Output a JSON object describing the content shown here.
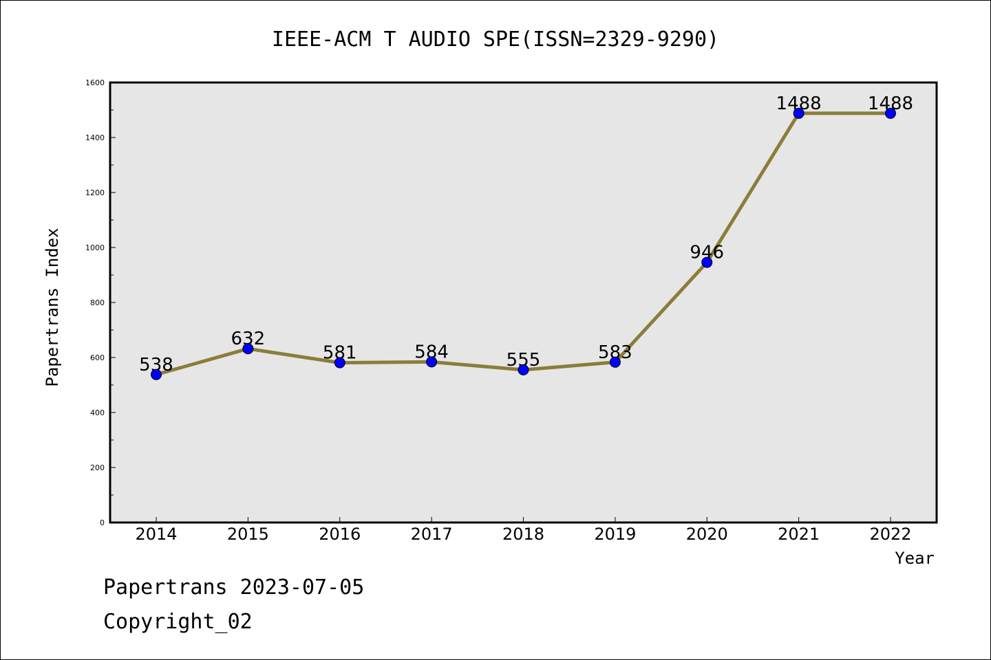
{
  "chart_data": {
    "type": "line",
    "title": "IEEE-ACM T AUDIO SPE(ISSN=2329-9290)",
    "xlabel": "Year",
    "ylabel": "Papertrans Index",
    "categories": [
      "2014",
      "2015",
      "2016",
      "2017",
      "2018",
      "2019",
      "2020",
      "2021",
      "2022"
    ],
    "series": [
      {
        "values": [
          538,
          632,
          581,
          584,
          555,
          583,
          946,
          1488,
          1488
        ]
      }
    ],
    "data_labels": [
      "538",
      "632",
      "581",
      "584",
      "555",
      "583",
      "946",
      "1488",
      "1488"
    ],
    "ylim": [
      0,
      1600
    ],
    "yticks": [
      "0",
      "200",
      "400",
      "600",
      "800",
      "1000",
      "1200",
      "1400",
      "1600"
    ],
    "grid": false,
    "legend": "none",
    "colors": {
      "line": "#8b7d3a",
      "marker": "#0000ff",
      "plot_background": "#e6e6e6"
    }
  },
  "footer": {
    "line1": "Papertrans 2023-07-05",
    "line2": "Copyright_02"
  }
}
